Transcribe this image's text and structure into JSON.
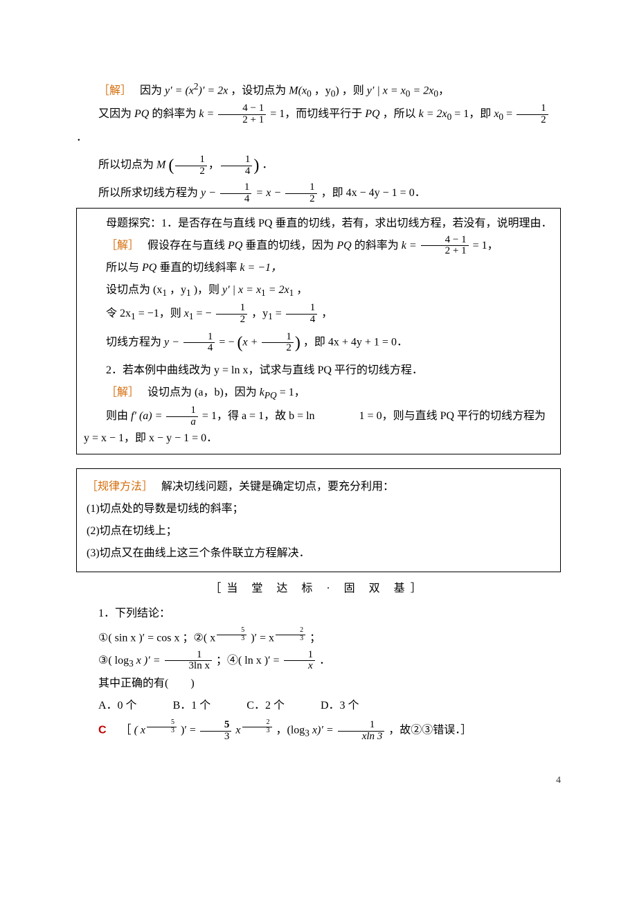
{
  "sol1": {
    "label": "［解］",
    "l1a": "因为 ",
    "l1b": "y′ = (x",
    "l1c": ")′ = 2x",
    "l1d": "，设切点为 ",
    "l1e": "M(x",
    "l1f": "，y",
    "l1g": ")",
    "l1h": "，则 ",
    "l1i": "y′ | x = x",
    "l1j": " = 2x",
    "l1k": "，",
    "l2a": "又因为 ",
    "l2b": "PQ",
    "l2c": " 的斜率为 ",
    "l2d": "k = ",
    "l2e": " = 1，而切线平行于 ",
    "l2f": "PQ",
    "l2g": "，所以 ",
    "l2h": "k = 2x",
    "l2i": " = 1，即 ",
    "l2j": "x",
    "l2k": " = ",
    "l2l": "．",
    "l3a": "所以切点为 ",
    "l3b": "M",
    "l3c": "．",
    "l4a": "所以所求切线方程为 ",
    "l4b": "y − ",
    "l4c": " = x − ",
    "l4d": "，即 4x − 4y − 1 = 0．",
    "f1n": "4 − 1",
    "f1d": "2 + 1",
    "f2n": "1",
    "f2d": "2",
    "f3n": "1",
    "f3d": "2",
    "f4n": "1",
    "f4d": "4",
    "f5n": "1",
    "f5d": "4",
    "f6n": "1",
    "f6d": "2"
  },
  "mother": {
    "title": "母题探究：",
    "q1": "1．是否存在与直线 PQ 垂直的切线，若有，求出切线方程，若没有，说明理由．",
    "label": "［解］",
    "l1a": "假设存在与直线 ",
    "l1b": "PQ",
    "l1c": " 垂直的切线，因为 ",
    "l1d": "PQ",
    "l1e": " 的斜率为 ",
    "l1f": "k = ",
    "l1g": " = 1，",
    "f1n": "4 − 1",
    "f1d": "2 + 1",
    "l2a": "所以与 ",
    "l2b": "PQ",
    "l2c": " 垂直的切线斜率 ",
    "l2d": "k = −1，",
    "l3a": "设切点为 (x",
    "l3b": "，y",
    "l3c": ")，则 ",
    "l3d": "y′ | x = x",
    "l3e": " = 2x",
    "l3f": "，",
    "l4a": "令 2x",
    "l4b": " = −1，则 ",
    "l4c": "x",
    "l4d": " = − ",
    "l4e": "，y",
    "l4f": " = ",
    "l4g": "，",
    "f2n": "1",
    "f2d": "2",
    "f3n": "1",
    "f3d": "4",
    "l5a": "切线方程为 ",
    "l5b": "y − ",
    "l5c": " = − ",
    "l5d": "，即 4x + 4y + 1 = 0．",
    "f4n": "1",
    "f4d": "4",
    "f5pre": "x + ",
    "f5n": "1",
    "f5d": "2",
    "q2": "2．若本例中曲线改为 y = ln x，试求与直线 PQ 平行的切线方程．",
    "label2": "［解］",
    "l6a": "设切点为 (a，b)，因为 ",
    "l6b": "k",
    "l6c": " = 1，",
    "l7a": "则由 ",
    "l7b": "f′ (a) = ",
    "l7c": " = 1，得 a = 1，故 b = ln　　　　1 = 0，则与直线 PQ 平行的切线方程为",
    "f6n": "1",
    "f6d": "a",
    "l8": "y = x − 1，即 x − y − 1 = 0．"
  },
  "rule": {
    "label": "［规律方法］",
    "t1": "解决切线问题，关键是确定切点，要充分利用：",
    "t2": "(1)切点处的导数是切线的斜率；",
    "t3": "(2)切点在切线上；",
    "t4": "(3)切点又在曲线上这三个条件联立方程解决．"
  },
  "section": "［当 堂 达 标 · 固 双 基］",
  "q1": {
    "stem": "1．下列结论：",
    "o1a": "①( sin x )′ = cos x ；②( x",
    "o1b": " )′ = x",
    "o1c": " ；",
    "e1": "5",
    "e1d": "3",
    "e2": "2",
    "e2d": "3",
    "o2a": "③( log",
    "o2b": "x )′ = ",
    "o2c": "；④( ln x )′ = ",
    "o2d": "．",
    "f1n": "1",
    "f1d": "3ln x",
    "f2n": "1",
    "f2d": "x",
    "ask": "其中正确的有(　　)",
    "A": "A．0 个",
    "B": "B．1 个",
    "C": "C．2 个",
    "D": "D．3 个",
    "ans": "C",
    "exp1": "［",
    "exp2": "( x",
    "exp3": " )′ = ",
    "exp4": " x",
    "exp5": "，(log",
    "exp6": "x)′ = ",
    "exp7": "，故②③错误．］",
    "ef1": "5",
    "ef1d": "3",
    "ef2n": "5",
    "ef2d": "3",
    "ef3": "2",
    "ef3d": "3",
    "ef4n": "1",
    "ef4d": "xln 3"
  },
  "pagenum": "4"
}
